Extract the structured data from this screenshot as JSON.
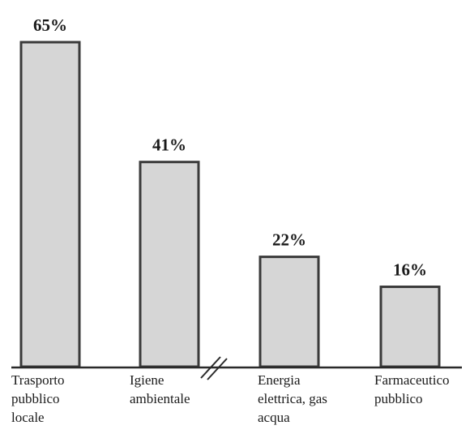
{
  "chart_data": {
    "type": "bar",
    "categories": [
      [
        "Trasporto",
        "pubblico",
        "locale"
      ],
      [
        "Igiene",
        "ambientale"
      ],
      [
        "Energia",
        "elettrica, gas",
        "acqua"
      ],
      [
        "Farmaceutico",
        "pubblico"
      ]
    ],
    "values": [
      65,
      41,
      22,
      16
    ],
    "value_labels": [
      "65%",
      "41%",
      "22%",
      "16%"
    ],
    "title": "",
    "xlabel": "",
    "ylabel": "",
    "ylim": [
      0,
      65
    ],
    "grid": false,
    "axis_break": true,
    "colors": {
      "bar_fill": "#d6d6d6",
      "bar_stroke": "#3a3a3a"
    }
  }
}
